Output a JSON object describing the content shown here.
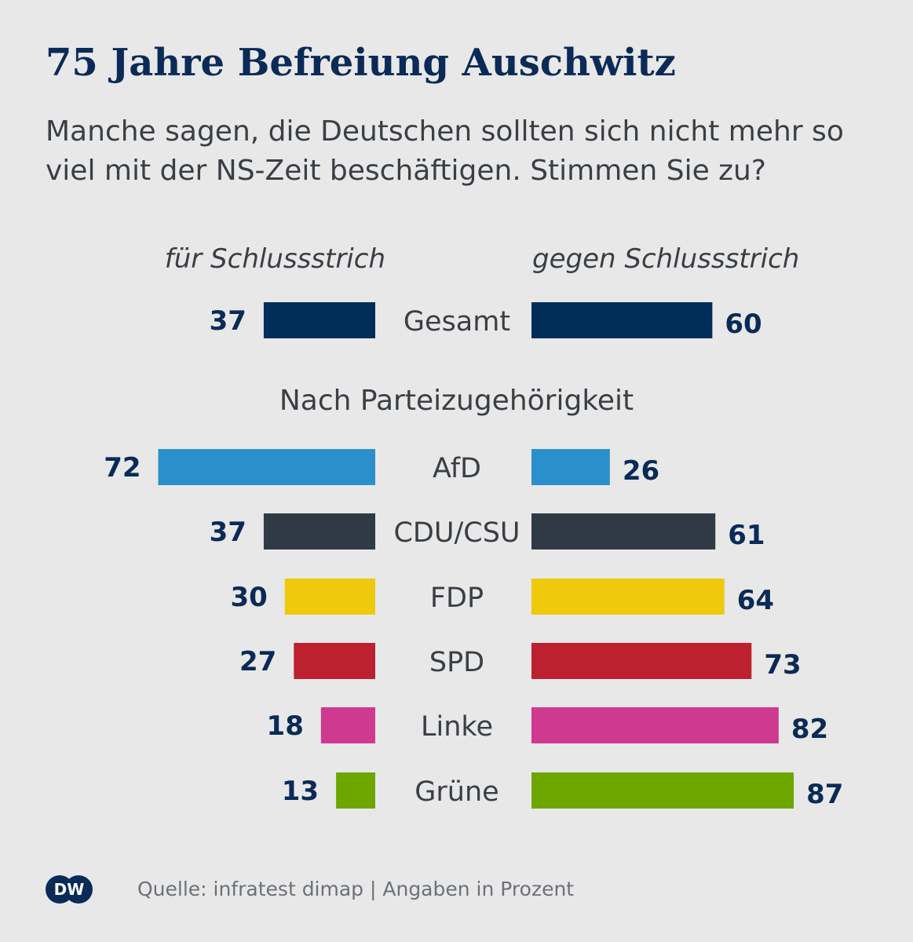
{
  "title": "75 Jahre Befreiung Auschwitz",
  "subtitle": "Manche sagen, die Deutschen sollten sich nicht mehr so viel mit der NS-Zeit beschäftigen. Stimmen Sie zu?",
  "left_header": "für Schlussstrich",
  "right_header": "gegen Schlussstrich",
  "section_label": "Nach Parteizugehörigkeit",
  "source": "Quelle: infratest dimap | Angaben in Prozent",
  "logo": {
    "text": "DW",
    "icon": "dw-logo-icon",
    "color": "#0a2a57"
  },
  "colors": {
    "value_text": "#0a2a57",
    "label_text": "#3a3f45"
  },
  "chart_data": {
    "type": "bar",
    "categories": [
      "Gesamt",
      "AfD",
      "CDU/CSU",
      "FDP",
      "SPD",
      "Linke",
      "Grüne"
    ],
    "colors": [
      "#002d5a",
      "#2b8fcb",
      "#2f3a46",
      "#eec90c",
      "#bd202f",
      "#d03990",
      "#6ea600"
    ],
    "series": [
      {
        "name": "für Schlussstrich",
        "values": [
          37,
          72,
          37,
          30,
          27,
          18,
          13
        ]
      },
      {
        "name": "gegen Schlussstrich",
        "values": [
          60,
          26,
          61,
          64,
          73,
          82,
          87
        ]
      }
    ]
  }
}
